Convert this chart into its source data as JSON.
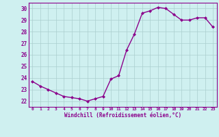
{
  "x": [
    0,
    1,
    2,
    3,
    4,
    5,
    6,
    7,
    8,
    9,
    10,
    11,
    12,
    13,
    14,
    15,
    16,
    17,
    18,
    19,
    20,
    21,
    22,
    23
  ],
  "y": [
    23.7,
    23.3,
    23.0,
    22.7,
    22.4,
    22.3,
    22.2,
    22.0,
    22.2,
    22.4,
    23.9,
    24.2,
    26.4,
    27.8,
    29.6,
    29.8,
    30.1,
    30.0,
    29.5,
    29.0,
    29.0,
    29.2,
    29.2,
    28.4
  ],
  "line_color": "#8B008B",
  "marker": "D",
  "marker_size": 2,
  "bg_color": "#cff0f0",
  "grid_color": "#aacece",
  "xlabel": "Windchill (Refroidissement éolien,°C)",
  "ylim": [
    21.5,
    30.5
  ],
  "yticks": [
    22,
    23,
    24,
    25,
    26,
    27,
    28,
    29,
    30
  ],
  "xticks": [
    0,
    1,
    2,
    3,
    4,
    5,
    6,
    7,
    8,
    9,
    10,
    11,
    12,
    13,
    14,
    15,
    16,
    17,
    18,
    19,
    20,
    21,
    22,
    23
  ],
  "font_color": "#8B008B",
  "grid_linewidth": 0.5,
  "line_width": 1.0
}
